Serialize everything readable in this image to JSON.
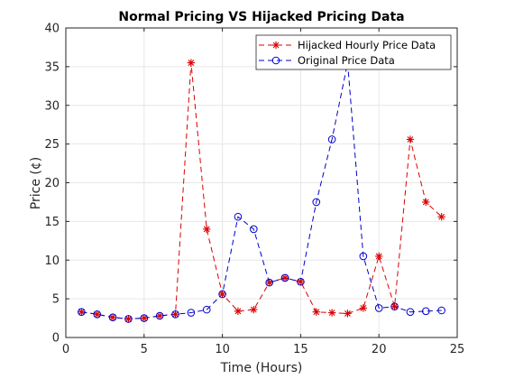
{
  "chart_data": {
    "type": "line",
    "title": "Normal Pricing VS Hijacked Pricing Data",
    "xlabel": "Time (Hours)",
    "ylabel": "Price (¢)",
    "xlim": [
      0,
      25
    ],
    "ylim": [
      0,
      40
    ],
    "xticks": [
      "0",
      "5",
      "10",
      "15",
      "20",
      "25"
    ],
    "yticks": [
      "0",
      "5",
      "10",
      "15",
      "20",
      "25",
      "30",
      "35",
      "40"
    ],
    "grid": true,
    "legend_position": "top-right",
    "x": [
      1,
      2,
      3,
      4,
      5,
      6,
      7,
      8,
      9,
      10,
      11,
      12,
      13,
      14,
      15,
      16,
      17,
      18,
      19,
      20,
      21,
      22,
      23,
      24
    ],
    "series": [
      {
        "name": "Hijacked Hourly Price Data",
        "color": "#d90000",
        "line_style": "dashed",
        "marker": "asterisk",
        "values": [
          3.3,
          3.0,
          2.6,
          2.4,
          2.5,
          2.8,
          3.0,
          35.5,
          14.0,
          5.6,
          3.4,
          3.6,
          7.1,
          7.7,
          7.2,
          3.3,
          3.2,
          3.1,
          3.8,
          10.5,
          4.0,
          25.6,
          17.5,
          15.6
        ]
      },
      {
        "name": "Original Price Data",
        "color": "#0000cc",
        "line_style": "dashed",
        "marker": "circle",
        "values": [
          3.3,
          3.0,
          2.6,
          2.4,
          2.5,
          2.8,
          3.0,
          3.2,
          3.6,
          5.6,
          15.6,
          14.0,
          7.1,
          7.7,
          7.2,
          17.5,
          25.6,
          35.5,
          10.5,
          3.8,
          4.0,
          3.3,
          3.4,
          3.5
        ]
      }
    ]
  }
}
